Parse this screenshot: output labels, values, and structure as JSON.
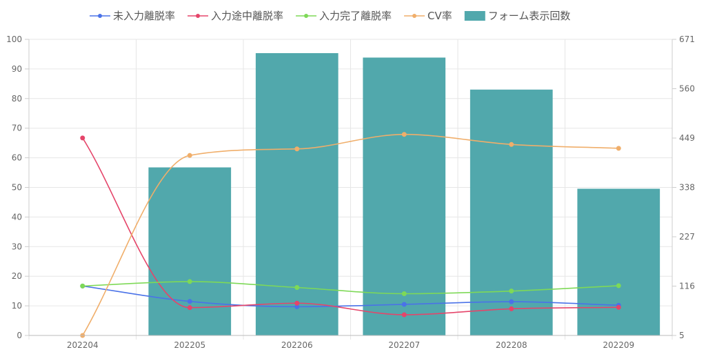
{
  "chart_data": {
    "type": "bar",
    "categories": [
      "202204",
      "202205",
      "202206",
      "202207",
      "202208",
      "202209"
    ],
    "y_left": {
      "min": 0,
      "max": 100,
      "ticks": [
        0,
        10,
        20,
        30,
        40,
        50,
        60,
        70,
        80,
        90,
        100
      ]
    },
    "y_right": {
      "min": 5,
      "max": 671,
      "ticks": [
        5,
        116,
        227,
        338,
        449,
        560,
        671
      ]
    },
    "series": [
      {
        "name": "未入力離脱率",
        "type": "line",
        "axis": "left",
        "color": "#4a72e8",
        "values": [
          16.7,
          11.5,
          9.7,
          10.5,
          11.4,
          10.2
        ]
      },
      {
        "name": "入力途中離脱率",
        "type": "line",
        "axis": "left",
        "color": "#e5456a",
        "values": [
          66.7,
          9.4,
          10.9,
          7.0,
          9.0,
          9.5
        ]
      },
      {
        "name": "入力完了離脱率",
        "type": "line",
        "axis": "left",
        "color": "#7ed957",
        "values": [
          16.7,
          18.2,
          16.2,
          14.1,
          15.0,
          16.8
        ]
      },
      {
        "name": "CV率",
        "type": "line",
        "axis": "left",
        "color": "#f0ae6a",
        "values": [
          0,
          60.8,
          63.0,
          67.9,
          64.5,
          63.2
        ]
      },
      {
        "name": "フォーム表示回数",
        "type": "bar",
        "axis": "right",
        "color": "#51a8ac",
        "values": [
          null,
          383,
          640,
          630,
          558,
          335
        ]
      }
    ],
    "legend_position": "top",
    "grid": true
  }
}
